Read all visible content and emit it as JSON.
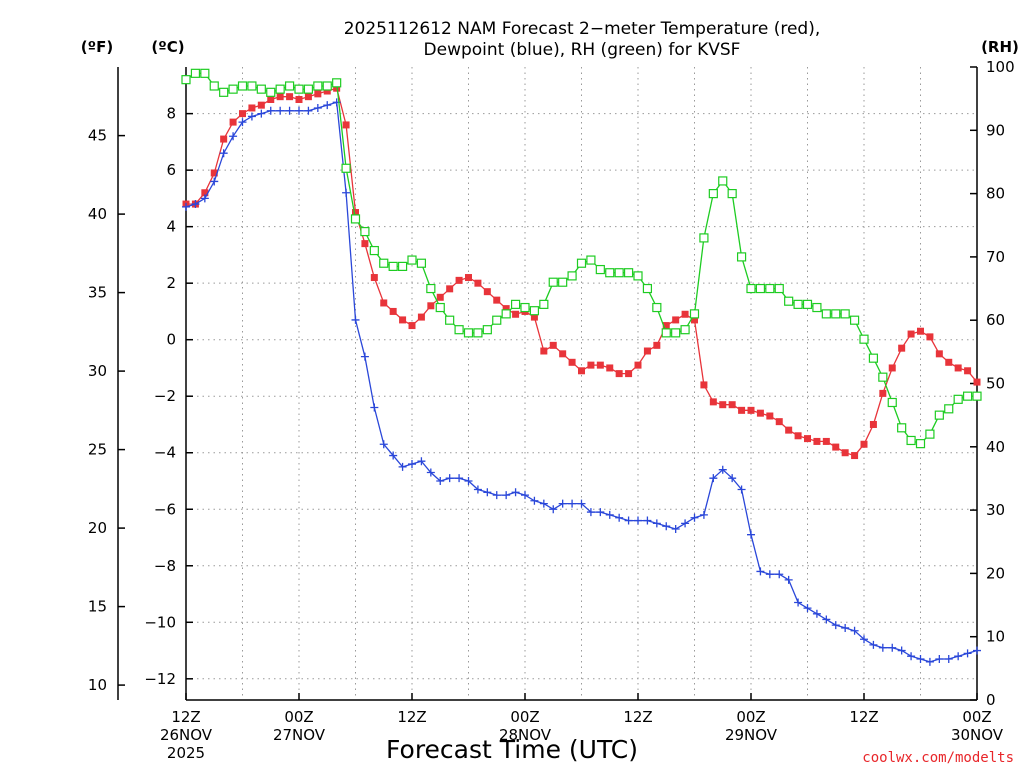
{
  "chart_data": {
    "type": "line",
    "title_line1": "2025112612 NAM Forecast 2−meter Temperature (red),",
    "title_line2": "Dewpoint (blue), RH (green) for KVSF",
    "left_outer_unit": "(ºF)",
    "left_inner_unit": "(ºC)",
    "right_unit": "(RH)",
    "xlabel": "Forecast Time (UTC)",
    "credit": "coolwx.com/modelts",
    "x_range_hours": [
      0,
      84
    ],
    "x_ticks": [
      {
        "h": 0,
        "lines": [
          "12Z",
          "26NOV",
          "2025"
        ]
      },
      {
        "h": 12,
        "lines": [
          "00Z",
          "27NOV"
        ]
      },
      {
        "h": 24,
        "lines": [
          "12Z"
        ]
      },
      {
        "h": 36,
        "lines": [
          "00Z",
          "28NOV"
        ]
      },
      {
        "h": 48,
        "lines": [
          "12Z"
        ]
      },
      {
        "h": 60,
        "lines": [
          "00Z",
          "29NOV"
        ]
      },
      {
        "h": 72,
        "lines": [
          "12Z"
        ]
      },
      {
        "h": 84,
        "lines": [
          "00Z",
          "30NOV"
        ]
      }
    ],
    "celsius_range": [
      -12.75,
      9.65
    ],
    "celsius_ticks": [
      "−12",
      "−10",
      "−8",
      "−6",
      "−4",
      "−2",
      "0",
      "2",
      "4",
      "6",
      "8"
    ],
    "fahrenheit_ticks": [
      "10",
      "15",
      "20",
      "25",
      "30",
      "35",
      "40",
      "45"
    ],
    "rh_range": [
      0,
      100
    ],
    "rh_ticks": [
      "0",
      "10",
      "20",
      "30",
      "40",
      "50",
      "60",
      "70",
      "80",
      "90",
      "100"
    ],
    "grid": true,
    "series": [
      {
        "name": "Temperature",
        "color": "#e8343a",
        "marker": "filled-square",
        "axis": "celsius",
        "values": [
          4.8,
          4.8,
          5.2,
          5.9,
          7.1,
          7.7,
          8.0,
          8.2,
          8.3,
          8.5,
          8.6,
          8.6,
          8.5,
          8.6,
          8.7,
          8.8,
          8.9,
          7.6,
          4.5,
          3.4,
          2.2,
          1.3,
          1.0,
          0.7,
          0.5,
          0.8,
          1.2,
          1.5,
          1.8,
          2.1,
          2.2,
          2.0,
          1.7,
          1.4,
          1.1,
          0.9,
          1.0,
          0.8,
          -0.4,
          -0.2,
          -0.5,
          -0.8,
          -1.1,
          -0.9,
          -0.9,
          -1.0,
          -1.2,
          -1.2,
          -0.9,
          -0.4,
          -0.2,
          0.5,
          0.7,
          0.9,
          0.7,
          -1.6,
          -2.2,
          -2.3,
          -2.3,
          -2.5,
          -2.5,
          -2.6,
          -2.7,
          -2.9,
          -3.2,
          -3.4,
          -3.5,
          -3.6,
          -3.6,
          -3.8,
          -4.0,
          -4.1,
          -3.7,
          -3.0,
          -1.9,
          -1.0,
          -0.3,
          0.2,
          0.3,
          0.1,
          -0.5,
          -0.8,
          -1.0,
          -1.1,
          -1.5
        ]
      },
      {
        "name": "Dewpoint",
        "color": "#2a47d9",
        "marker": "plus",
        "axis": "celsius",
        "values": [
          4.7,
          4.8,
          5.0,
          5.6,
          6.6,
          7.2,
          7.7,
          7.9,
          8.0,
          8.1,
          8.1,
          8.1,
          8.1,
          8.1,
          8.2,
          8.3,
          8.4,
          5.2,
          0.7,
          -0.6,
          -2.4,
          -3.7,
          -4.1,
          -4.5,
          -4.4,
          -4.3,
          -4.7,
          -5.0,
          -4.9,
          -4.9,
          -5.0,
          -5.3,
          -5.4,
          -5.5,
          -5.5,
          -5.4,
          -5.5,
          -5.7,
          -5.8,
          -6.0,
          -5.8,
          -5.8,
          -5.8,
          -6.1,
          -6.1,
          -6.2,
          -6.3,
          -6.4,
          -6.4,
          -6.4,
          -6.5,
          -6.6,
          -6.7,
          -6.5,
          -6.3,
          -6.2,
          -4.9,
          -4.6,
          -4.9,
          -5.3,
          -6.9,
          -8.2,
          -8.3,
          -8.3,
          -8.5,
          -9.3,
          -9.5,
          -9.7,
          -9.9,
          -10.1,
          -10.2,
          -10.3,
          -10.6,
          -10.8,
          -10.9,
          -10.9,
          -11.0,
          -11.2,
          -11.3,
          -11.4,
          -11.3,
          -11.3,
          -11.2,
          -11.1,
          -11.0
        ]
      },
      {
        "name": "RH",
        "color": "#1ecc22",
        "marker": "open-square",
        "axis": "rh",
        "values": [
          98,
          99,
          99,
          97,
          96,
          96.5,
          97,
          97,
          96.5,
          96,
          96.5,
          97,
          96.5,
          96.5,
          97,
          97,
          97.5,
          84,
          76,
          74,
          71,
          69,
          68.5,
          68.5,
          69.5,
          69,
          65,
          62,
          60,
          58.5,
          58,
          58,
          58.5,
          60,
          61,
          62.5,
          62,
          61.5,
          62.5,
          66,
          66,
          67,
          69,
          69.5,
          68,
          67.5,
          67.5,
          67.5,
          67,
          65,
          62,
          58,
          58,
          58.5,
          61,
          73,
          80,
          82,
          80,
          70,
          65,
          65,
          65,
          65,
          63,
          62.5,
          62.5,
          62,
          61,
          61,
          61,
          60,
          57,
          54,
          51,
          47,
          43,
          41,
          40.5,
          42,
          45,
          46,
          47.5,
          48,
          48
        ]
      }
    ]
  }
}
